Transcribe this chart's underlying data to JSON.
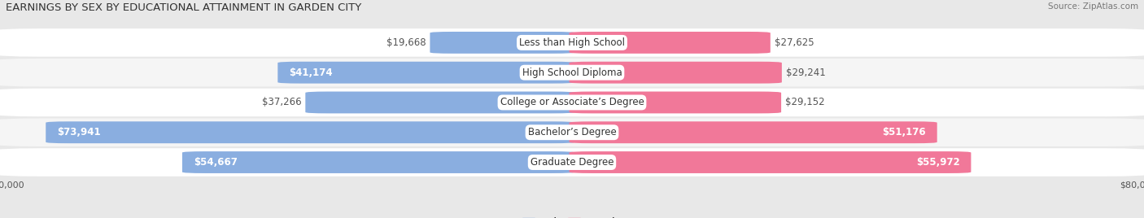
{
  "title": "EARNINGS BY SEX BY EDUCATIONAL ATTAINMENT IN GARDEN CITY",
  "source": "Source: ZipAtlas.com",
  "categories": [
    "Less than High School",
    "High School Diploma",
    "College or Associate’s Degree",
    "Bachelor’s Degree",
    "Graduate Degree"
  ],
  "male_values": [
    19668,
    41174,
    37266,
    73941,
    54667
  ],
  "female_values": [
    27625,
    29241,
    29152,
    51176,
    55972
  ],
  "male_color": "#8aaee0",
  "female_color": "#f17899",
  "axis_max": 80000,
  "background_color": "#e8e8e8",
  "row_bg_light": "#f5f5f5",
  "row_bg_white": "#ffffff",
  "bar_height": 0.72,
  "label_fontsize": 8.5,
  "title_fontsize": 9.5,
  "source_fontsize": 7.5,
  "dark_label_color": "#555555",
  "white_label_color": "#ffffff",
  "large_threshold": 38000
}
